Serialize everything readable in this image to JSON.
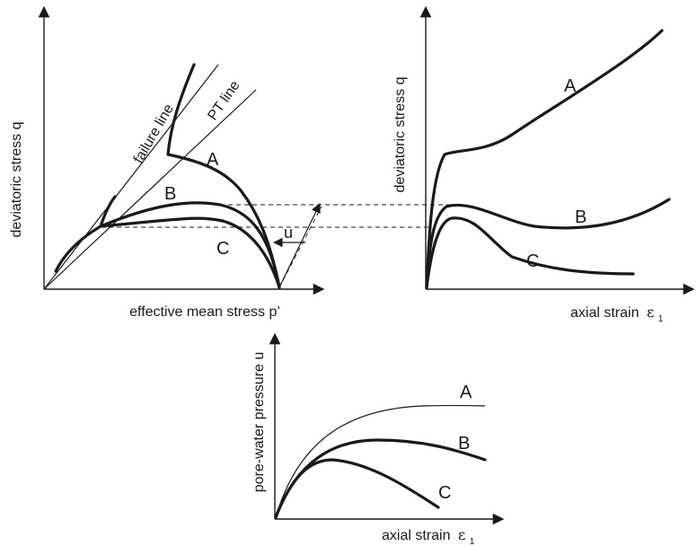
{
  "panels": {
    "stress_path": {
      "ylabel": "deviatoric stress q",
      "xlabel": "effective mean stress p’",
      "failure_line_label": "failure line",
      "pt_line_label": "PT line",
      "u_label": "u",
      "curves": [
        "A",
        "B",
        "C"
      ]
    },
    "stress_strain": {
      "ylabel": "deviatoric stress q",
      "xlabel": "axial strain",
      "symbol": "ε",
      "subscript": "1",
      "curves": [
        "A",
        "B",
        "C"
      ]
    },
    "pore_pressure": {
      "ylabel": "pore-water pressure u",
      "xlabel": "axial strain",
      "symbol": "ε",
      "subscript": "1",
      "curves": [
        "A",
        "B",
        "C"
      ]
    }
  },
  "colors": {
    "ink": "#1a1a1a",
    "background": "#ffffff"
  }
}
